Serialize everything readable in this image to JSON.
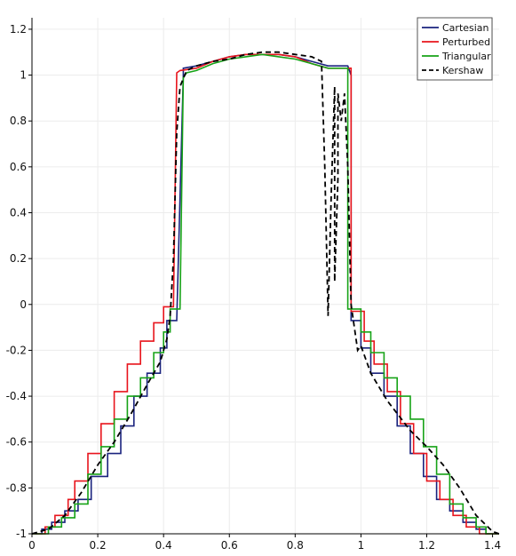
{
  "chart_data": {
    "type": "line",
    "title": "",
    "xlabel": "",
    "ylabel": "",
    "xlim": [
      0,
      1.42
    ],
    "ylim": [
      -1.0,
      1.25
    ],
    "grid": true,
    "legend_position": "top-right",
    "x_ticks": [
      {
        "value": 0,
        "label": "0"
      },
      {
        "value": 0.2,
        "label": "0.2"
      },
      {
        "value": 0.4,
        "label": "0.4"
      },
      {
        "value": 0.6,
        "label": "0.6"
      },
      {
        "value": 0.8,
        "label": "0.8"
      },
      {
        "value": 1.0,
        "label": "1"
      },
      {
        "value": 1.2,
        "label": "1.2"
      },
      {
        "value": 1.4,
        "label": "1.4"
      }
    ],
    "y_ticks": [
      {
        "value": 1.2,
        "label": "1.2"
      },
      {
        "value": 1.0,
        "label": "1"
      },
      {
        "value": 0.8,
        "label": "0.8"
      },
      {
        "value": 0.6,
        "label": "0.6"
      },
      {
        "value": 0.4,
        "label": "0.4"
      },
      {
        "value": 0.2,
        "label": "0.2"
      },
      {
        "value": 0.0,
        "label": "0"
      },
      {
        "value": -0.2,
        "label": "-0.2"
      },
      {
        "value": -0.4,
        "label": "-0.4"
      },
      {
        "value": -0.6,
        "label": "-0.6"
      },
      {
        "value": -0.8,
        "label": "-0.8"
      },
      {
        "value": -1.0,
        "label": "-1"
      }
    ],
    "series": [
      {
        "name": "Cartesian",
        "color": "#1a237e",
        "dash": "solid",
        "x": [
          0.0,
          0.03,
          0.03,
          0.06,
          0.06,
          0.1,
          0.1,
          0.14,
          0.14,
          0.18,
          0.18,
          0.23,
          0.23,
          0.27,
          0.27,
          0.31,
          0.31,
          0.35,
          0.35,
          0.39,
          0.39,
          0.41,
          0.41,
          0.44,
          0.46,
          0.46,
          0.5,
          0.55,
          0.6,
          0.65,
          0.7,
          0.75,
          0.8,
          0.85,
          0.9,
          0.93,
          0.95,
          0.96,
          0.97,
          0.97,
          1.0,
          1.0,
          1.03,
          1.03,
          1.07,
          1.07,
          1.11,
          1.11,
          1.15,
          1.15,
          1.19,
          1.19,
          1.23,
          1.23,
          1.27,
          1.27,
          1.31,
          1.31,
          1.35,
          1.35,
          1.38,
          1.38,
          1.42
        ],
        "y": [
          -1.0,
          -1.0,
          -0.98,
          -0.98,
          -0.95,
          -0.95,
          -0.9,
          -0.9,
          -0.85,
          -0.85,
          -0.75,
          -0.75,
          -0.65,
          -0.65,
          -0.53,
          -0.53,
          -0.4,
          -0.4,
          -0.3,
          -0.3,
          -0.19,
          -0.19,
          -0.07,
          -0.07,
          1.0,
          1.03,
          1.04,
          1.06,
          1.08,
          1.09,
          1.09,
          1.09,
          1.08,
          1.06,
          1.04,
          1.04,
          1.04,
          1.04,
          1.0,
          -0.07,
          -0.07,
          -0.19,
          -0.19,
          -0.3,
          -0.3,
          -0.4,
          -0.4,
          -0.53,
          -0.53,
          -0.65,
          -0.65,
          -0.75,
          -0.75,
          -0.85,
          -0.85,
          -0.9,
          -0.9,
          -0.95,
          -0.95,
          -0.98,
          -0.98,
          -1.0,
          -1.0
        ]
      },
      {
        "name": "Perturbed",
        "color": "#e8141c",
        "dash": "solid",
        "x": [
          0.0,
          0.04,
          0.04,
          0.07,
          0.07,
          0.11,
          0.11,
          0.13,
          0.13,
          0.17,
          0.17,
          0.21,
          0.21,
          0.25,
          0.25,
          0.29,
          0.29,
          0.33,
          0.33,
          0.37,
          0.37,
          0.4,
          0.4,
          0.43,
          0.44,
          0.45,
          0.5,
          0.55,
          0.6,
          0.65,
          0.7,
          0.75,
          0.8,
          0.85,
          0.9,
          0.94,
          0.96,
          0.97,
          0.97,
          1.01,
          1.01,
          1.04,
          1.04,
          1.08,
          1.08,
          1.12,
          1.12,
          1.16,
          1.16,
          1.2,
          1.2,
          1.24,
          1.24,
          1.28,
          1.28,
          1.32,
          1.32,
          1.36,
          1.36,
          1.38,
          1.38,
          1.42
        ],
        "y": [
          -1.0,
          -1.0,
          -0.97,
          -0.97,
          -0.92,
          -0.92,
          -0.85,
          -0.85,
          -0.77,
          -0.77,
          -0.65,
          -0.65,
          -0.52,
          -0.52,
          -0.38,
          -0.38,
          -0.26,
          -0.26,
          -0.16,
          -0.16,
          -0.08,
          -0.08,
          -0.01,
          -0.01,
          1.01,
          1.02,
          1.03,
          1.06,
          1.08,
          1.09,
          1.09,
          1.09,
          1.08,
          1.05,
          1.03,
          1.03,
          1.03,
          1.03,
          -0.03,
          -0.03,
          -0.16,
          -0.16,
          -0.26,
          -0.26,
          -0.38,
          -0.38,
          -0.52,
          -0.52,
          -0.65,
          -0.65,
          -0.77,
          -0.77,
          -0.85,
          -0.85,
          -0.92,
          -0.92,
          -0.97,
          -0.97,
          -1.0,
          -1.0,
          -1.0,
          -1.0
        ]
      },
      {
        "name": "Triangular",
        "color": "#17a317",
        "dash": "solid",
        "x": [
          0.0,
          0.05,
          0.05,
          0.09,
          0.09,
          0.13,
          0.13,
          0.17,
          0.17,
          0.21,
          0.21,
          0.25,
          0.25,
          0.29,
          0.29,
          0.33,
          0.33,
          0.37,
          0.37,
          0.4,
          0.4,
          0.42,
          0.42,
          0.45,
          0.46,
          0.47,
          0.5,
          0.55,
          0.6,
          0.65,
          0.7,
          0.75,
          0.8,
          0.85,
          0.9,
          0.93,
          0.96,
          0.96,
          1.0,
          1.0,
          1.03,
          1.03,
          1.07,
          1.07,
          1.11,
          1.11,
          1.15,
          1.15,
          1.19,
          1.19,
          1.23,
          1.23,
          1.27,
          1.27,
          1.31,
          1.31,
          1.35,
          1.35,
          1.38,
          1.38,
          1.42
        ],
        "y": [
          -1.0,
          -1.0,
          -0.97,
          -0.97,
          -0.93,
          -0.93,
          -0.87,
          -0.87,
          -0.74,
          -0.74,
          -0.62,
          -0.62,
          -0.5,
          -0.5,
          -0.4,
          -0.4,
          -0.32,
          -0.32,
          -0.21,
          -0.21,
          -0.12,
          -0.12,
          -0.02,
          -0.02,
          0.99,
          1.01,
          1.02,
          1.05,
          1.07,
          1.08,
          1.09,
          1.08,
          1.07,
          1.05,
          1.03,
          1.03,
          1.03,
          -0.02,
          -0.02,
          -0.12,
          -0.12,
          -0.21,
          -0.21,
          -0.32,
          -0.32,
          -0.4,
          -0.4,
          -0.5,
          -0.5,
          -0.62,
          -0.62,
          -0.74,
          -0.74,
          -0.87,
          -0.87,
          -0.93,
          -0.93,
          -0.97,
          -0.97,
          -1.0,
          -1.0
        ]
      },
      {
        "name": "Kershaw",
        "color": "#000000",
        "dash": "dashed",
        "x": [
          0.0,
          0.05,
          0.1,
          0.15,
          0.2,
          0.25,
          0.3,
          0.35,
          0.39,
          0.41,
          0.42,
          0.43,
          0.44,
          0.45,
          0.47,
          0.5,
          0.55,
          0.6,
          0.65,
          0.7,
          0.75,
          0.8,
          0.85,
          0.88,
          0.89,
          0.9,
          0.91,
          0.92,
          0.92,
          0.93,
          0.93,
          0.94,
          0.95,
          0.96,
          0.97,
          0.98,
          0.99,
          1.0,
          1.03,
          1.08,
          1.15,
          1.2,
          1.25,
          1.3,
          1.35,
          1.4,
          1.42
        ],
        "y": [
          -1.0,
          -0.98,
          -0.92,
          -0.82,
          -0.7,
          -0.6,
          -0.48,
          -0.35,
          -0.25,
          -0.15,
          -0.05,
          0.2,
          0.75,
          0.95,
          1.02,
          1.04,
          1.06,
          1.07,
          1.09,
          1.1,
          1.1,
          1.09,
          1.08,
          1.06,
          0.6,
          -0.05,
          0.5,
          0.95,
          0.1,
          0.55,
          0.92,
          0.8,
          0.92,
          0.6,
          0.0,
          -0.1,
          -0.2,
          -0.18,
          -0.3,
          -0.42,
          -0.55,
          -0.62,
          -0.7,
          -0.8,
          -0.92,
          -0.99,
          -1.0
        ]
      }
    ]
  }
}
